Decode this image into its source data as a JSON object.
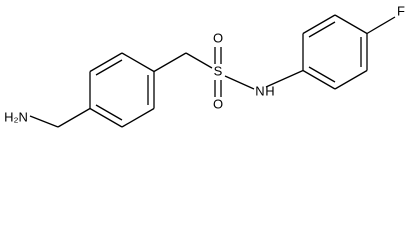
{
  "nodes": [
    {
      "label": "H₂N"
    },
    {
      "label": "S"
    },
    {
      "label": "O"
    },
    {
      "label": "O"
    },
    {
      "label": "N"
    },
    {
      "label": "H"
    },
    {
      "label": "F"
    }
  ]
}
